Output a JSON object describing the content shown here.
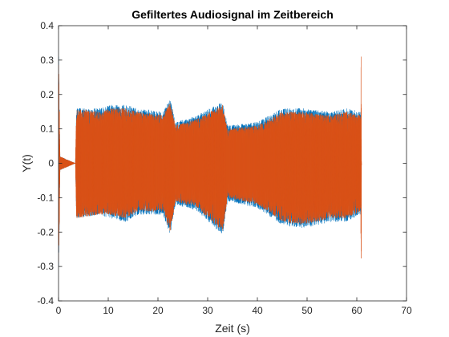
{
  "chart_data": {
    "type": "line",
    "title": "Gefiltertes Audiosignal im Zeitbereich",
    "xlabel": "Zeit (s)",
    "ylabel": "Y(t)",
    "xlim": [
      0,
      70
    ],
    "ylim": [
      -0.4,
      0.4
    ],
    "x_ticks": [
      "0",
      "10",
      "20",
      "30",
      "40",
      "50",
      "60",
      "70"
    ],
    "y_ticks": [
      "0.4",
      "0.3",
      "0.2",
      "0.1",
      "0",
      "-0.1",
      "-0.2",
      "-0.3",
      "-0.4"
    ],
    "grid": false,
    "legend": "none",
    "series": [
      {
        "color": "#0072BD",
        "envelope": [
          {
            "x": 0.0,
            "max": 0.36,
            "min": -0.36
          },
          {
            "x": 0.3,
            "max": 0.02,
            "min": -0.02
          },
          {
            "x": 3.4,
            "max": 0.0,
            "min": 0.0
          },
          {
            "x": 3.6,
            "max": 0.16,
            "min": -0.16
          },
          {
            "x": 8.0,
            "max": 0.16,
            "min": -0.15
          },
          {
            "x": 10.5,
            "max": 0.17,
            "min": -0.16
          },
          {
            "x": 13.5,
            "max": 0.17,
            "min": -0.17
          },
          {
            "x": 16.0,
            "max": 0.16,
            "min": -0.15
          },
          {
            "x": 21.0,
            "max": 0.15,
            "min": -0.15
          },
          {
            "x": 22.5,
            "max": 0.19,
            "min": -0.21
          },
          {
            "x": 23.5,
            "max": 0.12,
            "min": -0.12
          },
          {
            "x": 28.0,
            "max": 0.14,
            "min": -0.14
          },
          {
            "x": 33.0,
            "max": 0.18,
            "min": -0.21
          },
          {
            "x": 34.0,
            "max": 0.11,
            "min": -0.11
          },
          {
            "x": 40.0,
            "max": 0.12,
            "min": -0.13
          },
          {
            "x": 45.0,
            "max": 0.16,
            "min": -0.18
          },
          {
            "x": 49.0,
            "max": 0.16,
            "min": -0.19
          },
          {
            "x": 55.0,
            "max": 0.15,
            "min": -0.17
          },
          {
            "x": 58.0,
            "max": 0.16,
            "min": -0.17
          },
          {
            "x": 60.8,
            "max": 0.15,
            "min": -0.15
          },
          {
            "x": 60.9,
            "max": 0.0,
            "min": 0.0
          }
        ]
      },
      {
        "color": "#D95319",
        "envelope": [
          {
            "x": 0.0,
            "max": 0.35,
            "min": -0.35
          },
          {
            "x": 0.3,
            "max": 0.02,
            "min": -0.02
          },
          {
            "x": 3.4,
            "max": 0.0,
            "min": 0.0
          },
          {
            "x": 3.6,
            "max": 0.16,
            "min": -0.16
          },
          {
            "x": 8.0,
            "max": 0.15,
            "min": -0.15
          },
          {
            "x": 10.5,
            "max": 0.16,
            "min": -0.15
          },
          {
            "x": 13.5,
            "max": 0.16,
            "min": -0.16
          },
          {
            "x": 16.0,
            "max": 0.15,
            "min": -0.14
          },
          {
            "x": 21.0,
            "max": 0.14,
            "min": -0.14
          },
          {
            "x": 22.5,
            "max": 0.18,
            "min": -0.2
          },
          {
            "x": 23.5,
            "max": 0.11,
            "min": -0.11
          },
          {
            "x": 28.0,
            "max": 0.13,
            "min": -0.13
          },
          {
            "x": 33.0,
            "max": 0.17,
            "min": -0.2
          },
          {
            "x": 34.0,
            "max": 0.1,
            "min": -0.1
          },
          {
            "x": 40.0,
            "max": 0.11,
            "min": -0.12
          },
          {
            "x": 45.0,
            "max": 0.15,
            "min": -0.17
          },
          {
            "x": 49.0,
            "max": 0.15,
            "min": -0.18
          },
          {
            "x": 55.0,
            "max": 0.14,
            "min": -0.16
          },
          {
            "x": 58.0,
            "max": 0.15,
            "min": -0.16
          },
          {
            "x": 60.8,
            "max": 0.14,
            "min": -0.14
          },
          {
            "x": 60.85,
            "max": 0.36,
            "min": -0.38
          },
          {
            "x": 60.95,
            "max": 0.0,
            "min": 0.0
          }
        ]
      }
    ]
  }
}
